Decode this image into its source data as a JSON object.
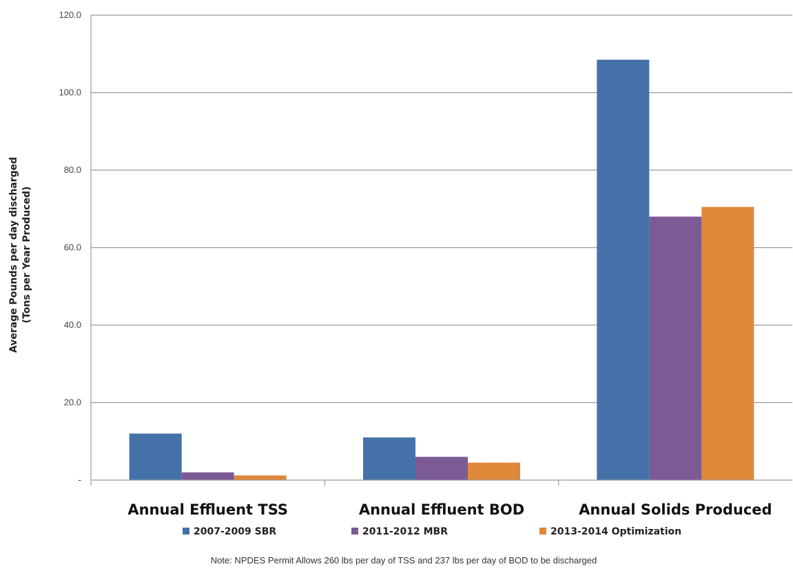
{
  "chart_data": {
    "type": "bar",
    "categories": [
      "Annual Effluent TSS",
      "Annual Effluent BOD",
      "Annual Solids Produced"
    ],
    "series": [
      {
        "name": "2007-2009 SBR",
        "values": [
          12.0,
          11.0,
          108.5
        ],
        "color": "#4472a8"
      },
      {
        "name": "2011-2012 MBR",
        "values": [
          2.0,
          6.0,
          68.0
        ],
        "color": "#7b5a96"
      },
      {
        "name": "2013-2014 Optimization",
        "values": [
          1.2,
          4.5,
          70.5
        ],
        "color": "#e0883a"
      }
    ],
    "ylabel_line1": "Average Pounds per day discharged",
    "ylabel_line2": "(Tons per Year Produced)",
    "ylim": [
      0,
      120
    ],
    "yticks": [
      {
        "value": 0,
        "label": "-"
      },
      {
        "value": 20,
        "label": "20.0"
      },
      {
        "value": 40,
        "label": "40.0"
      },
      {
        "value": 60,
        "label": "60.0"
      },
      {
        "value": 80,
        "label": "80.0"
      },
      {
        "value": 100,
        "label": "100.0"
      },
      {
        "value": 120,
        "label": "120.0"
      }
    ],
    "grid": true,
    "legend_position": "bottom",
    "note": "Note: NPDES Permit Allows 260 lbs per day of TSS and 237 lbs per day of BOD to be discharged"
  }
}
